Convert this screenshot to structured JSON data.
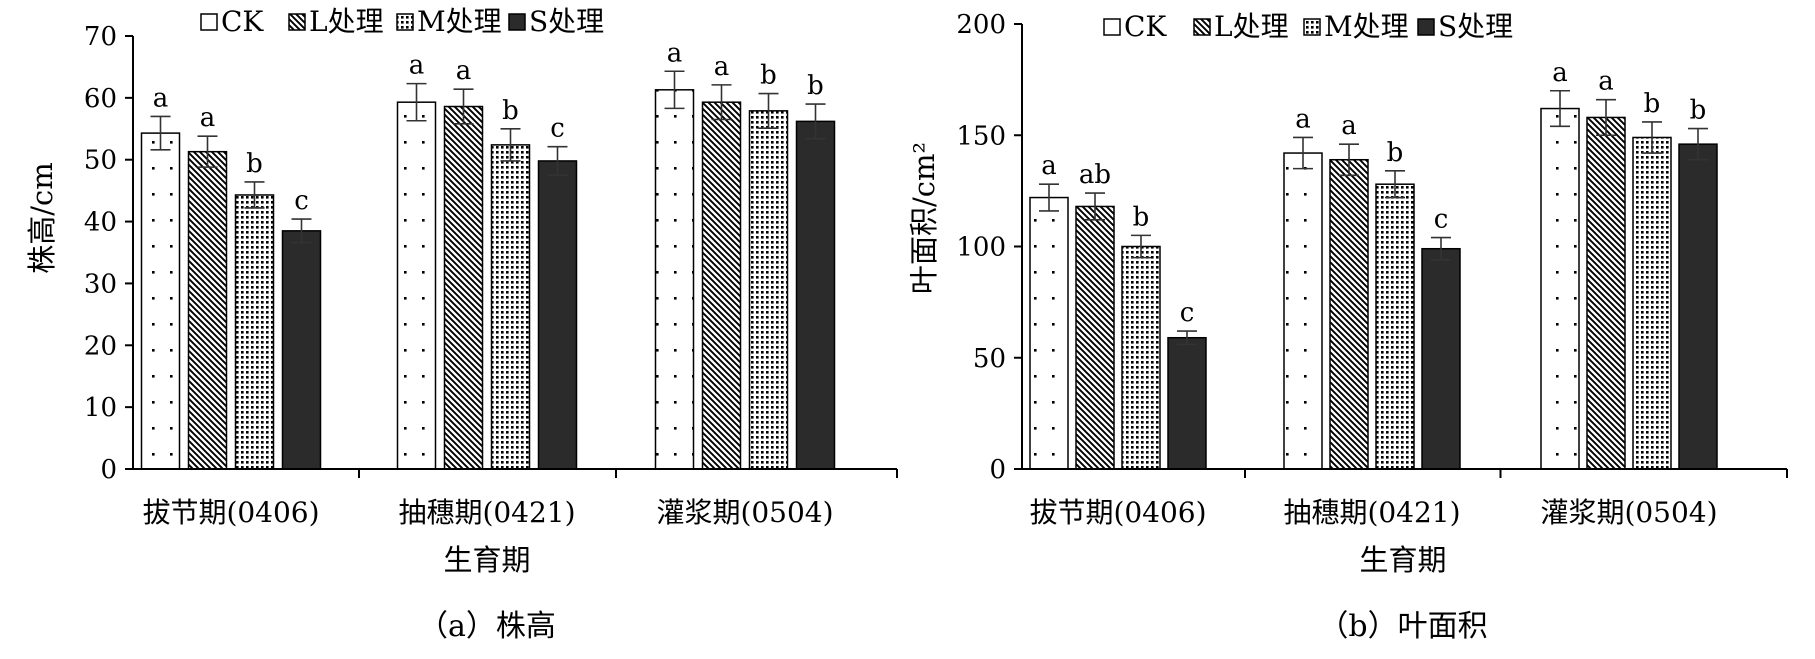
{
  "legend": [
    {
      "label": "CK",
      "pattern": "pat-ck"
    },
    {
      "label": "L处理",
      "pattern": "pat-l"
    },
    {
      "label": "M处理",
      "pattern": "pat-m"
    },
    {
      "label": "S处理",
      "pattern": "pat-s"
    }
  ],
  "colors": {
    "s_fill": "#2b2b2b",
    "stroke": "#000000",
    "background": "#ffffff"
  },
  "chart_data": [
    {
      "type": "bar",
      "title": "（a）株高",
      "xlabel": "生育期",
      "ylabel": "株高/cm",
      "ylim": [
        0,
        70
      ],
      "yticks": [
        "0",
        "10",
        "20",
        "30",
        "40",
        "50",
        "60",
        "70"
      ],
      "categories": [
        "拔节期(0406)",
        "抽穗期(0421)",
        "灌浆期(0504)"
      ],
      "legend_position": "top",
      "grid": false,
      "series": [
        {
          "name": "CK",
          "values": [
            54.3,
            59.3,
            61.3
          ],
          "errors": [
            2.7,
            3.0,
            3.0
          ],
          "labels": [
            "a",
            "a",
            "a"
          ]
        },
        {
          "name": "L处理",
          "values": [
            51.3,
            58.6,
            59.3
          ],
          "errors": [
            2.5,
            2.8,
            2.8
          ],
          "labels": [
            "a",
            "a",
            "a"
          ]
        },
        {
          "name": "M处理",
          "values": [
            44.3,
            52.4,
            57.9
          ],
          "errors": [
            2.1,
            2.6,
            2.8
          ],
          "labels": [
            "b",
            "b",
            "b"
          ]
        },
        {
          "name": "S处理",
          "values": [
            38.5,
            49.8,
            56.2
          ],
          "errors": [
            1.9,
            2.3,
            2.8
          ],
          "labels": [
            "c",
            "c",
            "b"
          ]
        }
      ]
    },
    {
      "type": "bar",
      "title": "（b）叶面积",
      "xlabel": "生育期",
      "ylabel": "叶面积/cm²",
      "ylim": [
        0,
        200
      ],
      "yticks": [
        "0",
        "50",
        "100",
        "150",
        "200"
      ],
      "categories": [
        "拔节期(0406)",
        "抽穗期(0421)",
        "灌浆期(0504)"
      ],
      "legend_position": "top",
      "grid": false,
      "series": [
        {
          "name": "CK",
          "values": [
            122,
            142,
            162
          ],
          "errors": [
            6,
            7,
            8
          ],
          "labels": [
            "a",
            "a",
            "a"
          ]
        },
        {
          "name": "L处理",
          "values": [
            118,
            139,
            158
          ],
          "errors": [
            6,
            7,
            8
          ],
          "labels": [
            "ab",
            "a",
            "a"
          ]
        },
        {
          "name": "M处理",
          "values": [
            100,
            128,
            149
          ],
          "errors": [
            5,
            6,
            7
          ],
          "labels": [
            "b",
            "b",
            "b"
          ]
        },
        {
          "name": "S处理",
          "values": [
            59,
            99,
            146
          ],
          "errors": [
            3,
            5,
            7
          ],
          "labels": [
            "c",
            "c",
            "b"
          ]
        }
      ]
    }
  ]
}
